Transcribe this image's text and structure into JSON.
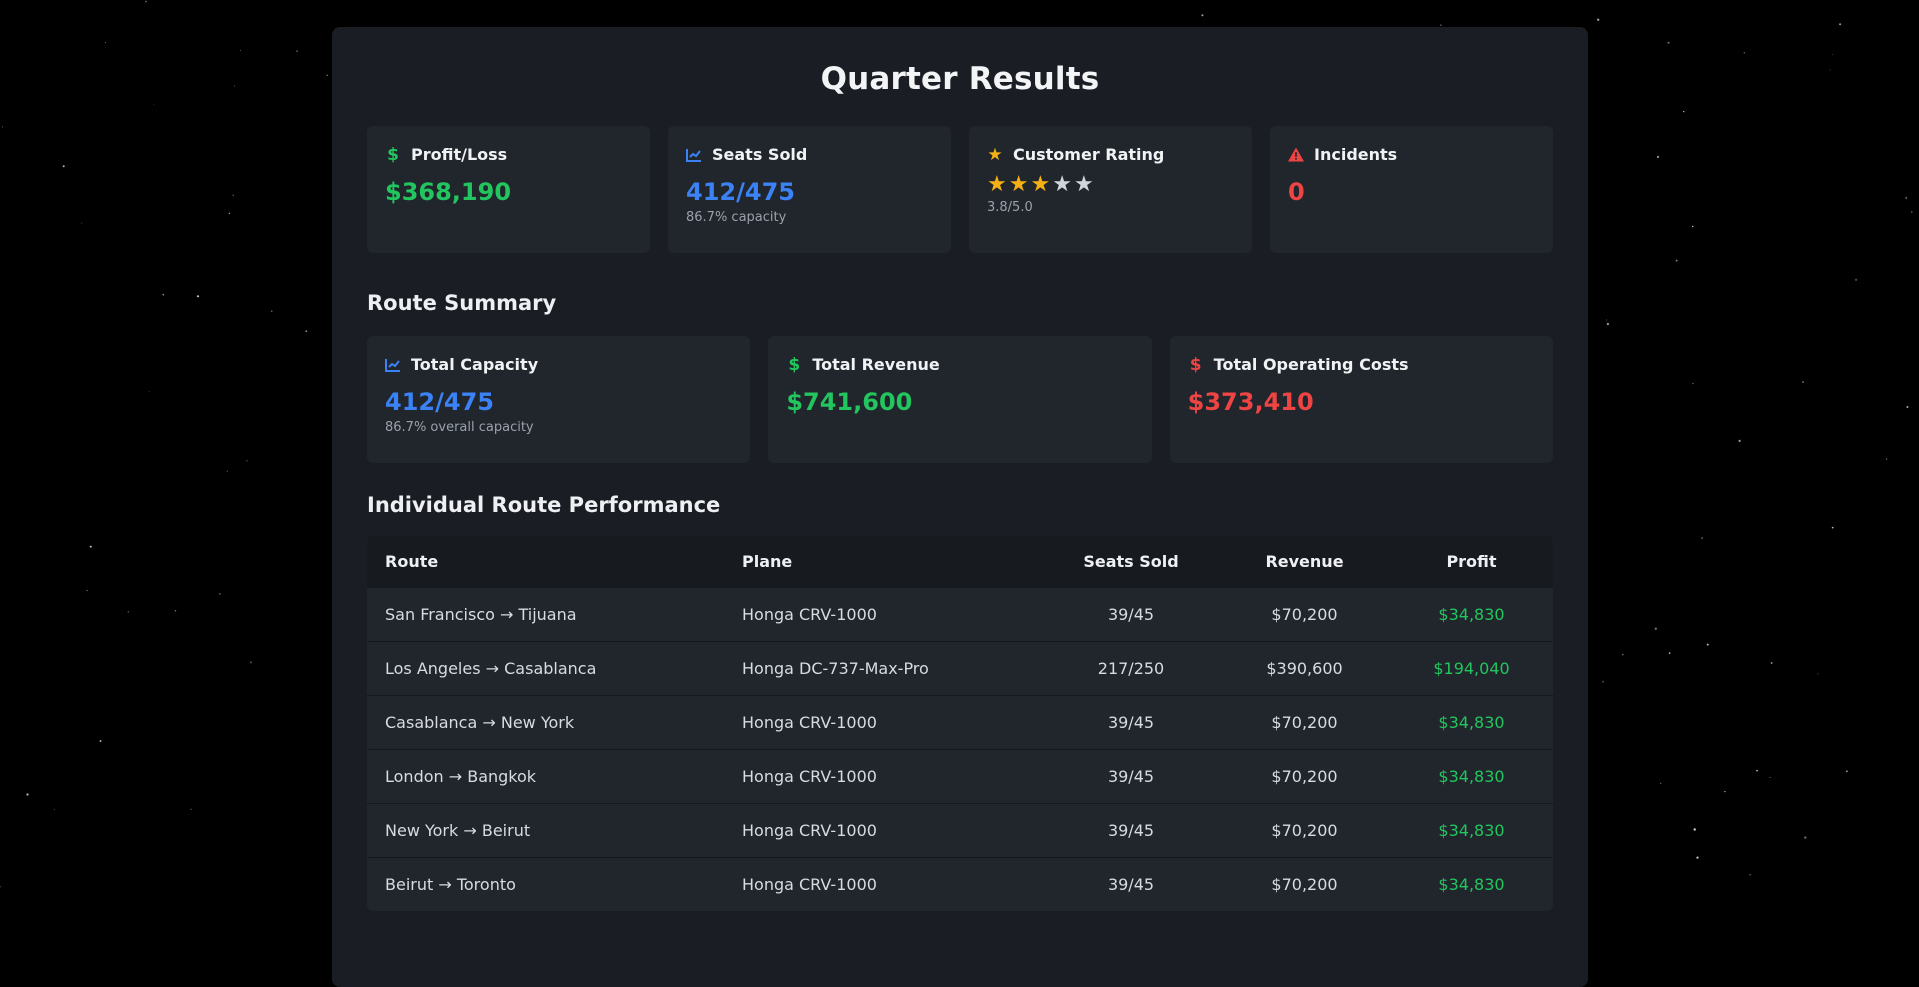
{
  "page": {
    "title": "Quarter Results"
  },
  "stats": [
    {
      "label": "Profit/Loss",
      "icon": "dollar-icon",
      "value": "$368,190",
      "sub": ""
    },
    {
      "label": "Seats Sold",
      "icon": "chart-line-icon",
      "value": "412/475",
      "sub": "86.7% capacity"
    },
    {
      "label": "Customer Rating",
      "icon": "star-icon",
      "rating": 3.8,
      "rating_max": 5,
      "sub": "3.8/5.0"
    },
    {
      "label": "Incidents",
      "icon": "warning-icon",
      "value": "0",
      "sub": ""
    }
  ],
  "route_summary": {
    "title": "Route Summary",
    "cards": [
      {
        "label": "Total Capacity",
        "icon": "chart-line-icon",
        "value": "412/475",
        "sub": "86.7% overall capacity"
      },
      {
        "label": "Total Revenue",
        "icon": "dollar-icon",
        "value": "$741,600",
        "sub": ""
      },
      {
        "label": "Total Operating Costs",
        "icon": "dollar-icon",
        "value": "$373,410",
        "sub": ""
      }
    ]
  },
  "routes": {
    "title": "Individual Route Performance",
    "columns": [
      "Route",
      "Plane",
      "Seats Sold",
      "Revenue",
      "Profit"
    ],
    "rows": [
      {
        "route": "San Francisco → Tijuana",
        "plane": "Honga CRV-1000",
        "seats": "39/45",
        "revenue": "$70,200",
        "profit": "$34,830"
      },
      {
        "route": "Los Angeles → Casablanca",
        "plane": "Honga DC-737-Max-Pro",
        "seats": "217/250",
        "revenue": "$390,600",
        "profit": "$194,040"
      },
      {
        "route": "Casablanca → New York",
        "plane": "Honga CRV-1000",
        "seats": "39/45",
        "revenue": "$70,200",
        "profit": "$34,830"
      },
      {
        "route": "London → Bangkok",
        "plane": "Honga CRV-1000",
        "seats": "39/45",
        "revenue": "$70,200",
        "profit": "$34,830"
      },
      {
        "route": "New York → Beirut",
        "plane": "Honga CRV-1000",
        "seats": "39/45",
        "revenue": "$70,200",
        "profit": "$34,830"
      },
      {
        "route": "Beirut → Toronto",
        "plane": "Honga CRV-1000",
        "seats": "39/45",
        "revenue": "$70,200",
        "profit": "$34,830"
      }
    ]
  },
  "colors": {
    "positive": "#22c55e",
    "accent": "#3b82f6",
    "negative": "#ef4444",
    "rating": "#f5b014"
  }
}
